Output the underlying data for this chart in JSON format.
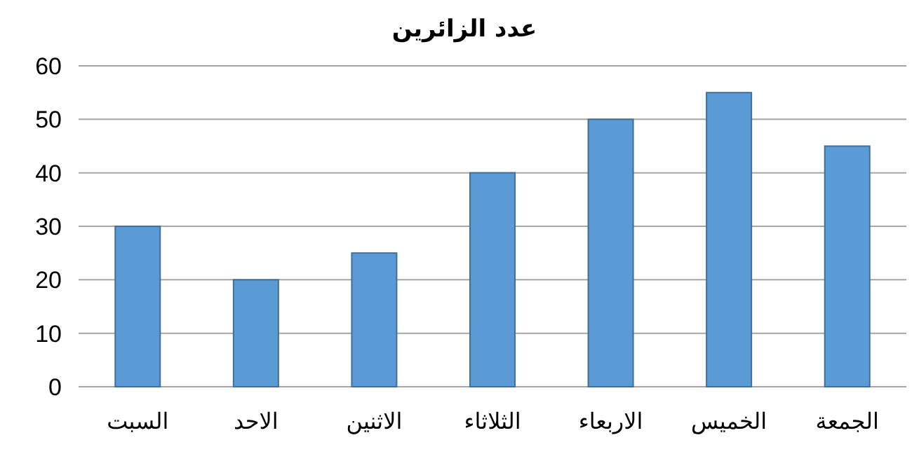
{
  "chart_data": {
    "type": "bar",
    "title": "عدد الزائرين",
    "categories": [
      "السبت",
      "الاحد",
      "الاثنين",
      "الثلاثاء",
      "الاربعاء",
      "الخميس",
      "الجمعة"
    ],
    "values": [
      30,
      20,
      25,
      40,
      50,
      55,
      45
    ],
    "color": "#5b9bd5",
    "ylim": [
      0,
      60
    ],
    "yticks": [
      0,
      10,
      20,
      30,
      40,
      50,
      60
    ],
    "grid": "y"
  }
}
